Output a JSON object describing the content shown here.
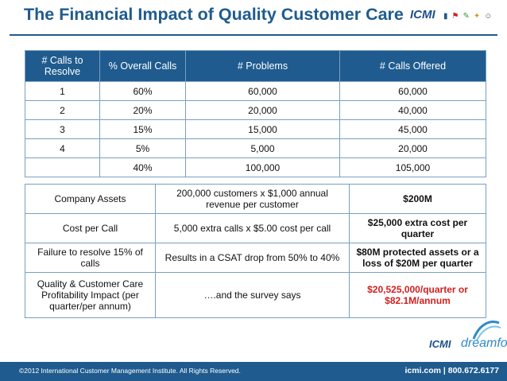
{
  "title": "The Financial Impact of Quality Customer Care",
  "logo": {
    "text": "ICMI"
  },
  "table1": {
    "headers": [
      "# Calls to Resolve",
      "% Overall Calls",
      "# Problems",
      "# Calls Offered"
    ],
    "rows": [
      [
        "1",
        "60%",
        "60,000",
        "60,000"
      ],
      [
        "2",
        "20%",
        "20,000",
        "40,000"
      ],
      [
        "3",
        "15%",
        "15,000",
        "45,000"
      ],
      [
        "4",
        "5%",
        "5,000",
        "20,000"
      ],
      [
        "",
        "40%",
        "100,000",
        "105,000"
      ]
    ]
  },
  "table2": {
    "rows": [
      [
        "Company Assets",
        "200,000 customers x $1,000 annual revenue per customer",
        "$200M"
      ],
      [
        "Cost per Call",
        "5,000 extra calls x $5.00 cost per call",
        "$25,000 extra cost per quarter"
      ],
      [
        "Failure to resolve 15% of calls",
        "Results in a CSAT drop from 50% to 40%",
        "$80M protected assets or a loss of $20M per quarter"
      ],
      [
        "Quality & Customer Care Profitability Impact (per quarter/per annum)",
        "….and the survey says",
        "$20,525,000/quarter or $82.1M/annum"
      ]
    ]
  },
  "brand": {
    "icmi": "ICMI",
    "dreamforce": "dreamforce"
  },
  "footer": {
    "copyright": "©2012 International Customer Management Institute.  All Rights Reserved.",
    "contact": "icmi.com | 800.672.6177"
  },
  "colors": {
    "primary": "#1f5b8e",
    "highlight": "#d41e1e"
  }
}
